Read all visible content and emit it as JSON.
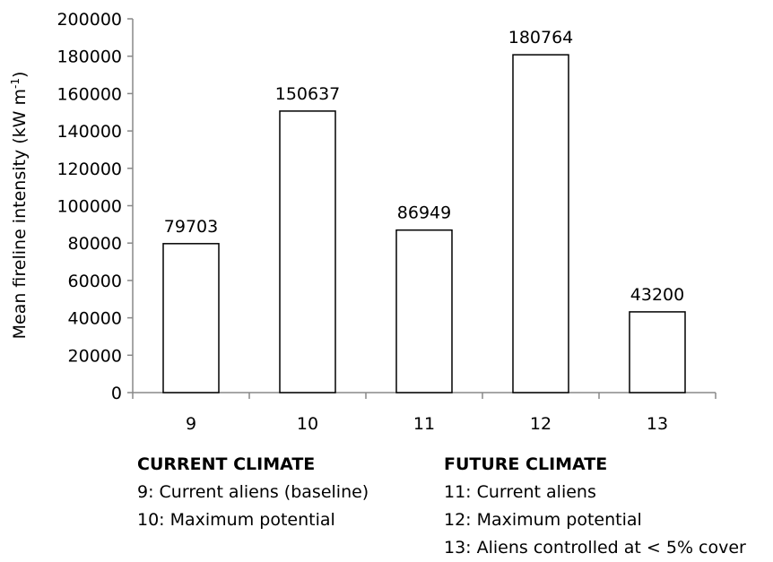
{
  "chart_data": {
    "type": "bar",
    "categories": [
      "9",
      "10",
      "11",
      "12",
      "13"
    ],
    "values": [
      79703,
      150637,
      86949,
      180764,
      43200
    ],
    "data_labels": [
      "79703",
      "150637",
      "86949",
      "180764",
      "43200"
    ],
    "ylabel": "Mean fireline intensity (kW m",
    "ylabel_sup": "-1",
    "ylabel_close": ")",
    "ylim": [
      0,
      200000
    ],
    "y_ticks": [
      0,
      20000,
      40000,
      60000,
      80000,
      100000,
      120000,
      140000,
      160000,
      180000,
      200000
    ],
    "bar_fill": "#ffffff",
    "bar_stroke": "#000000",
    "grid": false
  },
  "legend": {
    "current": {
      "heading": "CURRENT CLIMATE",
      "items": [
        "9: Current aliens (baseline)",
        "10: Maximum potential"
      ]
    },
    "future": {
      "heading": "FUTURE CLIMATE",
      "items": [
        "11: Current aliens",
        "12: Maximum potential",
        "13: Aliens controlled at < 5% cover"
      ]
    }
  }
}
